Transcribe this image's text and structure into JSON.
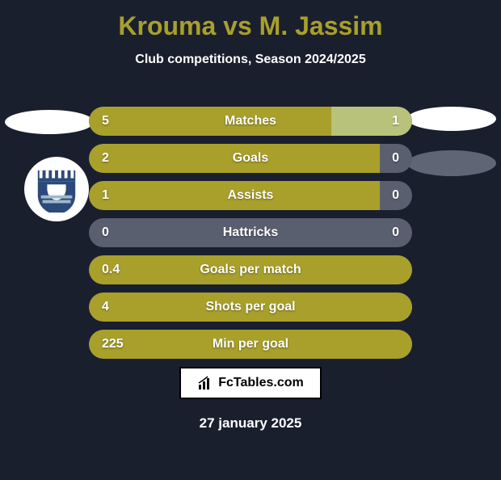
{
  "title_color": "#a8a02b",
  "subtitle_color": "#ffffff",
  "background_color": "#1a1f2e",
  "title": "Krouma vs M. Jassim",
  "subtitle": "Club competitions, Season 2024/2025",
  "badge_left_color": "#ffffff",
  "badge_right_color": "#ffffff",
  "badge_right2_color": "#606575",
  "row_left_color": "#a8a02b",
  "row_right_color": "#b9c27a",
  "row_neutral_color": "#5a5f70",
  "rows": [
    {
      "label": "Matches",
      "left": "5",
      "right": "1",
      "left_pct": 75,
      "right_pct": 25
    },
    {
      "label": "Goals",
      "left": "2",
      "right": "0",
      "left_pct": 90,
      "right_pct": 0
    },
    {
      "label": "Assists",
      "left": "1",
      "right": "0",
      "left_pct": 90,
      "right_pct": 0
    },
    {
      "label": "Hattricks",
      "left": "0",
      "right": "0",
      "left_pct": 0,
      "right_pct": 0
    },
    {
      "label": "Goals per match",
      "left": "0.4",
      "right": "",
      "left_pct": 100,
      "right_pct": 0
    },
    {
      "label": "Shots per goal",
      "left": "4",
      "right": "",
      "left_pct": 100,
      "right_pct": 0
    },
    {
      "label": "Min per goal",
      "left": "225",
      "right": "",
      "left_pct": 100,
      "right_pct": 0
    }
  ],
  "footer_brand": "FcTables.com",
  "footer_date": "27 january 2025",
  "club_logo_colors": {
    "shield": "#2b4a7a",
    "stripes": "#9fb9c9",
    "gate": "#ffffff"
  }
}
